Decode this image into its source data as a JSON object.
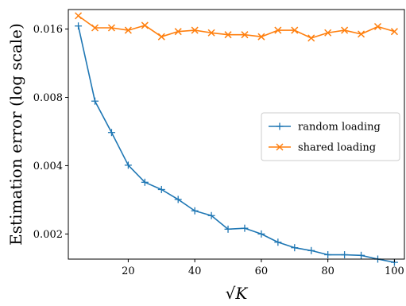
{
  "chart_data": {
    "type": "line",
    "title": "",
    "xlabel": "√K",
    "ylabel": "Estimation error (log scale)",
    "xlim": [
      2,
      103
    ],
    "ylim": [
      0.00155,
      0.0195
    ],
    "yscale": "log",
    "grid": false,
    "legend_position": "center-right",
    "x_ticks": [
      20,
      40,
      60,
      80,
      100
    ],
    "x_tick_labels": [
      "20",
      "40",
      "60",
      "80",
      "100"
    ],
    "y_ticks": [
      0.002,
      0.004,
      0.008,
      0.016
    ],
    "y_tick_labels": [
      "0.002",
      "0.004",
      "0.008",
      "0.016"
    ],
    "x": [
      5,
      10,
      15,
      20,
      25,
      30,
      35,
      40,
      45,
      50,
      55,
      60,
      65,
      70,
      75,
      80,
      85,
      90,
      95,
      100
    ],
    "series": [
      {
        "name": "random loading",
        "color": "#1f77b4",
        "marker": "plus",
        "values": [
          0.0165,
          0.0077,
          0.0056,
          0.00402,
          0.00338,
          0.00314,
          0.00284,
          0.00253,
          0.00241,
          0.0021,
          0.00212,
          0.002,
          0.00184,
          0.00174,
          0.00169,
          0.00162,
          0.00162,
          0.00161,
          0.00155,
          0.0015
        ]
      },
      {
        "name": "shared loading",
        "color": "#ff7f0e",
        "marker": "x",
        "values": [
          0.0183,
          0.0162,
          0.0162,
          0.0158,
          0.0166,
          0.0148,
          0.0156,
          0.0158,
          0.0154,
          0.0151,
          0.0151,
          0.0148,
          0.0158,
          0.0158,
          0.0146,
          0.0154,
          0.0158,
          0.0152,
          0.0164,
          0.0156
        ]
      }
    ]
  }
}
